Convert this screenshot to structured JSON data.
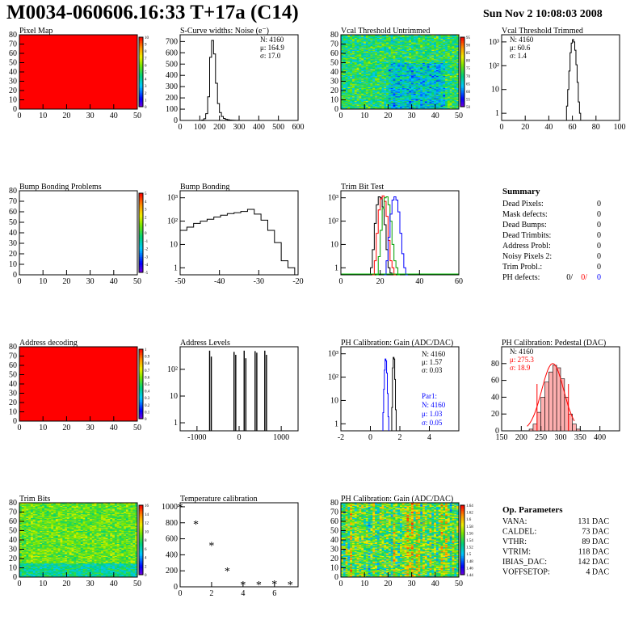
{
  "header": {
    "title": "M0034-060606.16:33 T+17a (C14)",
    "date": "Sun Nov  2 10:08:03 2008"
  },
  "panels": {
    "pixel_map": {
      "title": "Pixel Map",
      "xticks": [
        "0",
        "10",
        "20",
        "30",
        "40",
        "50"
      ],
      "yticks": [
        "0",
        "10",
        "20",
        "30",
        "40",
        "50",
        "60",
        "70",
        "80"
      ],
      "palette_ticks": [
        "0",
        "1",
        "2",
        "3",
        "4",
        "5",
        "6",
        "7",
        "8",
        "9",
        "10"
      ],
      "fill_color": "#ff0000"
    },
    "scurve": {
      "title": "S-Curve widths: Noise (e⁻)",
      "xticks": [
        "0",
        "100",
        "200",
        "300",
        "400",
        "500",
        "600"
      ],
      "yticks": [
        "0",
        "100",
        "200",
        "300",
        "400",
        "500",
        "600",
        "700"
      ],
      "stats": {
        "n": "N: 4160",
        "mu": "μ: 164.9",
        "sigma": "σ: 17.0"
      }
    },
    "vcal_untrimmed": {
      "title": "Vcal Threshold Untrimmed",
      "xticks": [
        "0",
        "10",
        "20",
        "30",
        "40",
        "50"
      ],
      "yticks": [
        "0",
        "10",
        "20",
        "30",
        "40",
        "50",
        "60",
        "70",
        "80"
      ],
      "palette_ticks": [
        "50",
        "55",
        "60",
        "65",
        "70",
        "75",
        "80",
        "85",
        "90",
        "95"
      ]
    },
    "vcal_trimmed": {
      "title": "Vcal Threshold Trimmed",
      "xticks": [
        "0",
        "20",
        "40",
        "60",
        "80",
        "100"
      ],
      "yticks": [
        "1",
        "10",
        "10²",
        "10³"
      ],
      "stats": {
        "n": "N: 4160",
        "mu": "μ: 60.6",
        "sigma": "σ:  1.4"
      }
    },
    "bump_problems": {
      "title": "Bump Bonding Problems",
      "xticks": [
        "0",
        "10",
        "20",
        "30",
        "40",
        "50"
      ],
      "yticks": [
        "0",
        "10",
        "20",
        "30",
        "40",
        "50",
        "60",
        "70",
        "80"
      ],
      "palette_ticks": [
        "-5",
        "-4",
        "-3",
        "-2",
        "-1",
        "0",
        "1",
        "2",
        "3",
        "4",
        "5"
      ]
    },
    "bump_bonding": {
      "title": "Bump Bonding",
      "xticks": [
        "-50",
        "-40",
        "-30",
        "-20"
      ],
      "yticks": [
        "1",
        "10",
        "10²",
        "10³"
      ]
    },
    "trim_bit": {
      "title": "Trim Bit Test",
      "xticks": [
        "0",
        "20",
        "40",
        "60"
      ],
      "yticks": [
        "1",
        "10",
        "10²",
        "10³"
      ]
    },
    "summary": {
      "title": "Summary",
      "rows": [
        {
          "label": "Dead Pixels:",
          "value": "0"
        },
        {
          "label": "Mask defects:",
          "value": "0"
        },
        {
          "label": "Dead Bumps:",
          "value": "0"
        },
        {
          "label": "Dead Trimbits:",
          "value": "0"
        },
        {
          "label": "Address Probl:",
          "value": "0"
        },
        {
          "label": "Noisy Pixels 2:",
          "value": "0"
        },
        {
          "label": "Trim Probl.:",
          "value": "0"
        }
      ],
      "ph_label": "PH defects:",
      "ph_values": [
        "0/",
        "0/",
        "0"
      ]
    },
    "address_decoding": {
      "title": "Address decoding",
      "xticks": [
        "0",
        "10",
        "20",
        "30",
        "40",
        "50"
      ],
      "yticks": [
        "0",
        "10",
        "20",
        "30",
        "40",
        "50",
        "60",
        "70",
        "80"
      ],
      "palette_ticks": [
        "0",
        "0.1",
        "0.2",
        "0.3",
        "0.4",
        "0.5",
        "0.6",
        "0.7",
        "0.8",
        "0.9",
        "1"
      ]
    },
    "address_levels": {
      "title": "Address Levels",
      "xticks": [
        "-1000",
        "0",
        "1000"
      ],
      "yticks": [
        "1",
        "10",
        "10²"
      ]
    },
    "ph_gain_hist": {
      "title": "PH Calibration: Gain (ADC/DAC)",
      "xticks": [
        "-2",
        "0",
        "2",
        "4"
      ],
      "yticks": [
        "1",
        "10",
        "10²",
        "10³"
      ],
      "stats": {
        "n": "N: 4160",
        "mu": "μ: 1.57",
        "sigma": "σ: 0.03"
      },
      "stats2": {
        "name": "Par1:",
        "n": "N: 4160",
        "mu": "μ: 1.03",
        "sigma": "σ: 0.05"
      }
    },
    "ph_pedestal": {
      "title": "PH Calibration: Pedestal (DAC)",
      "xticks": [
        "150",
        "200",
        "250",
        "300",
        "350",
        "400"
      ],
      "yticks": [
        "0",
        "20",
        "40",
        "60",
        "80"
      ],
      "stats": {
        "n": "N: 4160",
        "mu": "μ: 275.3",
        "sigma": "σ: 18.9"
      }
    },
    "trim_bits": {
      "title": "Trim Bits",
      "xticks": [
        "0",
        "10",
        "20",
        "30",
        "40",
        "50"
      ],
      "yticks": [
        "0",
        "10",
        "20",
        "30",
        "40",
        "50",
        "60",
        "70",
        "80"
      ],
      "palette_ticks": [
        "0",
        "2",
        "4",
        "6",
        "8",
        "10",
        "12",
        "14",
        "16"
      ]
    },
    "temp_cal": {
      "title": "Temperature calibration",
      "xticks": [
        "0",
        "2",
        "4",
        "6"
      ],
      "yticks": [
        "0",
        "200",
        "400",
        "600",
        "800",
        "1000"
      ]
    },
    "ph_gain_map": {
      "title": "PH Calibration: Gain (ADC/DAC)",
      "xticks": [
        "0",
        "10",
        "20",
        "30",
        "40",
        "50"
      ],
      "yticks": [
        "0",
        "10",
        "20",
        "30",
        "40",
        "50",
        "60",
        "70",
        "80"
      ],
      "palette_ticks": [
        "1.44",
        "1.46",
        "1.48",
        "1.5",
        "1.52",
        "1.54",
        "1.56",
        "1.58",
        "1.6",
        "1.62",
        "1.64"
      ]
    },
    "op_params": {
      "title": "Op. Parameters",
      "rows": [
        {
          "label": "VANA:",
          "value": "131 DAC"
        },
        {
          "label": "CALDEL:",
          "value": "73 DAC"
        },
        {
          "label": "VTHR:",
          "value": "89 DAC"
        },
        {
          "label": "VTRIM:",
          "value": "118 DAC"
        },
        {
          "label": "IBIAS_DAC:",
          "value": "142 DAC"
        },
        {
          "label": "VOFFSETOP:",
          "value": "4 DAC"
        }
      ]
    }
  },
  "chart_data": [
    {
      "type": "heatmap",
      "id": "pixel_map",
      "xlim": [
        0,
        52
      ],
      "ylim": [
        0,
        80
      ],
      "zlim": [
        0,
        10
      ],
      "uniform_value": 10
    },
    {
      "type": "bar",
      "id": "scurve",
      "xlim": [
        0,
        600
      ],
      "ylim": [
        0,
        760
      ],
      "x": [
        100,
        110,
        120,
        130,
        140,
        150,
        160,
        170,
        180,
        190,
        200,
        210,
        220,
        230,
        240,
        250,
        260,
        270,
        280,
        290,
        300
      ],
      "values": [
        0,
        4,
        15,
        60,
        210,
        560,
        710,
        590,
        330,
        150,
        70,
        35,
        18,
        10,
        6,
        4,
        3,
        2,
        1,
        1,
        0
      ]
    },
    {
      "type": "heatmap",
      "id": "vcal_untrimmed",
      "xlim": [
        0,
        52
      ],
      "ylim": [
        0,
        80
      ],
      "zlim": [
        50,
        95
      ]
    },
    {
      "type": "bar",
      "id": "vcal_trimmed",
      "log_y": true,
      "xlim": [
        0,
        100
      ],
      "ylim": [
        0.5,
        2000
      ],
      "x": [
        55,
        56,
        57,
        58,
        59,
        60,
        61,
        62,
        63,
        64,
        65,
        66
      ],
      "values": [
        2,
        10,
        60,
        350,
        900,
        1250,
        1000,
        450,
        110,
        20,
        3,
        1
      ]
    },
    {
      "type": "heatmap",
      "id": "bump_problems",
      "xlim": [
        0,
        52
      ],
      "ylim": [
        0,
        80
      ],
      "zlim": [
        -5,
        5
      ],
      "empty": true
    },
    {
      "type": "bar",
      "id": "bump_bonding",
      "log_y": true,
      "xlim": [
        -50,
        -15
      ],
      "ylim": [
        0.5,
        2000
      ],
      "x": [
        -50,
        -48,
        -46,
        -44,
        -42,
        -40,
        -38,
        -36,
        -34,
        -32,
        -30,
        -28,
        -26,
        -24,
        -22,
        -20,
        -18
      ],
      "values": [
        40,
        55,
        80,
        100,
        120,
        150,
        180,
        210,
        230,
        260,
        320,
        200,
        110,
        40,
        12,
        2,
        1
      ]
    },
    {
      "type": "line",
      "id": "trim_bit",
      "log_y": true,
      "xlim": [
        0,
        60
      ],
      "ylim": [
        0.5,
        2000
      ],
      "series": [
        {
          "name": "trim0",
          "color": "#000000",
          "x": [
            15,
            16,
            17,
            18,
            19,
            20,
            21,
            22,
            23,
            24,
            25,
            26
          ],
          "y": [
            1,
            6,
            80,
            500,
            1100,
            1000,
            400,
            70,
            6,
            1,
            0.6,
            0.5
          ]
        },
        {
          "name": "trim1",
          "color": "#ff0000",
          "x": [
            16,
            17,
            18,
            19,
            20,
            21,
            22,
            23,
            24,
            25,
            26,
            27
          ],
          "y": [
            0.5,
            2,
            30,
            300,
            900,
            1200,
            700,
            160,
            15,
            2,
            1,
            0.5
          ]
        },
        {
          "name": "trim2",
          "color": "#00a000",
          "x": [
            18,
            19,
            20,
            21,
            22,
            23,
            24,
            25,
            26,
            27,
            28,
            29
          ],
          "y": [
            0.5,
            3,
            40,
            350,
            1000,
            1100,
            500,
            100,
            10,
            2,
            1,
            0.5
          ]
        },
        {
          "name": "trim3",
          "color": "#0000ff",
          "x": [
            22,
            23,
            24,
            25,
            26,
            27,
            28,
            29,
            30,
            31,
            32,
            33
          ],
          "y": [
            0.5,
            2,
            20,
            200,
            800,
            1100,
            800,
            250,
            30,
            4,
            1,
            0.5
          ]
        }
      ]
    },
    {
      "type": "heatmap",
      "id": "address_decoding",
      "xlim": [
        0,
        52
      ],
      "ylim": [
        0,
        80
      ],
      "zlim": [
        0,
        1
      ],
      "uniform_value": 1
    },
    {
      "type": "bar",
      "id": "address_levels",
      "log_y": true,
      "xlim": [
        -1400,
        1400
      ],
      "ylim": [
        0.5,
        700
      ],
      "x": [
        -700,
        -660,
        -120,
        -80,
        120,
        160,
        380,
        420,
        610,
        650
      ],
      "values": [
        500,
        300,
        450,
        350,
        500,
        260,
        480,
        420,
        500,
        350
      ]
    },
    {
      "type": "bar",
      "id": "ph_gain_hist",
      "log_y": true,
      "xlim": [
        -2,
        6
      ],
      "ylim": [
        0.5,
        2000
      ],
      "series": [
        {
          "name": "Par1",
          "color": "#0000ff",
          "x": [
            0.85,
            0.9,
            0.95,
            1.0,
            1.05,
            1.1,
            1.15,
            1.2
          ],
          "values": [
            3,
            30,
            200,
            600,
            500,
            150,
            20,
            2
          ]
        },
        {
          "name": "gain",
          "color": "#000000",
          "x": [
            1.45,
            1.5,
            1.55,
            1.6,
            1.65,
            1.7
          ],
          "values": [
            5,
            250,
            700,
            600,
            80,
            4
          ]
        }
      ]
    },
    {
      "type": "bar",
      "id": "ph_pedestal",
      "xlim": [
        150,
        450
      ],
      "ylim": [
        0,
        100
      ],
      "x": [
        220,
        230,
        240,
        250,
        260,
        270,
        280,
        290,
        300,
        310,
        320,
        330,
        340
      ],
      "values": [
        2,
        8,
        22,
        40,
        58,
        70,
        78,
        75,
        62,
        40,
        20,
        8,
        2
      ],
      "fit_color": "#ff0000"
    },
    {
      "type": "heatmap",
      "id": "trim_bits",
      "xlim": [
        0,
        52
      ],
      "ylim": [
        0,
        80
      ],
      "zlim": [
        0,
        16
      ]
    },
    {
      "type": "scatter",
      "id": "temp_cal",
      "xlim": [
        0,
        7.5
      ],
      "ylim": [
        0,
        1050
      ],
      "x": [
        0,
        1,
        2,
        3,
        4,
        5,
        6,
        7
      ],
      "y": [
        1000,
        790,
        520,
        200,
        30,
        30,
        40,
        30
      ],
      "marker": "*"
    },
    {
      "type": "heatmap",
      "id": "ph_gain_map",
      "xlim": [
        0,
        52
      ],
      "ylim": [
        0,
        80
      ],
      "zlim": [
        1.44,
        1.64
      ]
    }
  ]
}
